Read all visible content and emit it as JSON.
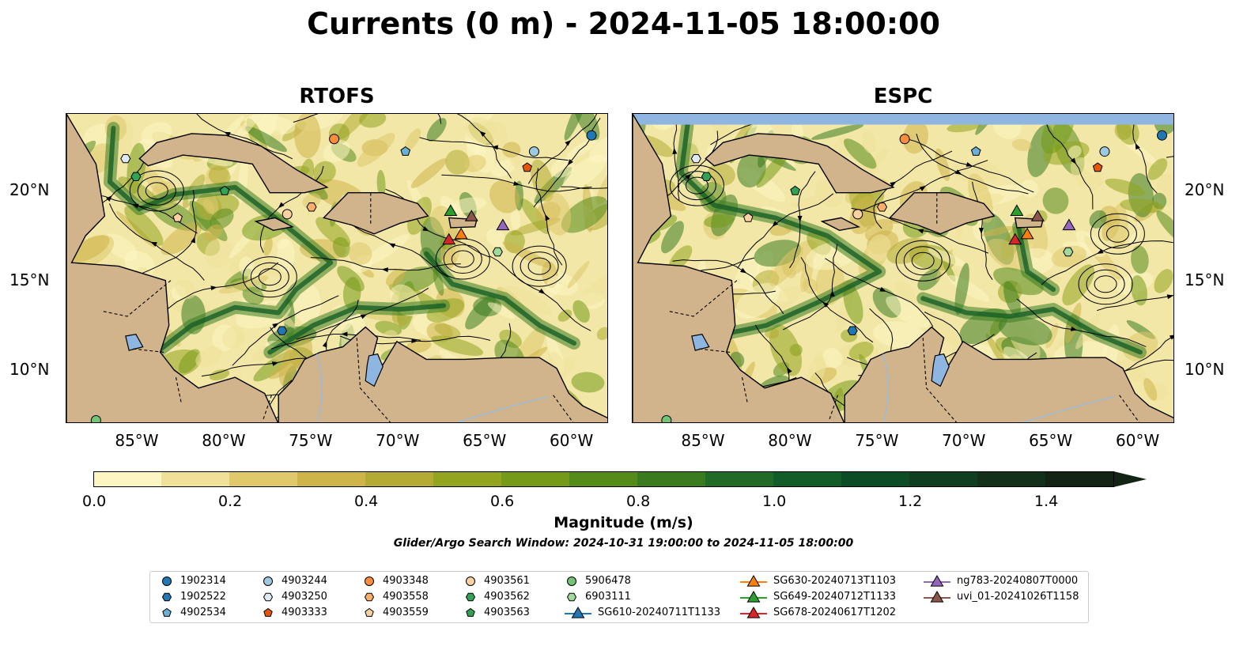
{
  "title": "Currents (0 m) - 2024-11-05 18:00:00",
  "panels": [
    {
      "title": "RTOFS"
    },
    {
      "title": "ESPC"
    }
  ],
  "lon_ticks": [
    "85°W",
    "80°W",
    "75°W",
    "70°W",
    "65°W",
    "60°W"
  ],
  "lat_ticks": [
    "20°N",
    "15°N",
    "10°N"
  ],
  "colorbar": {
    "label": "Magnitude (m/s)",
    "ticks": [
      "0.0",
      "0.2",
      "0.4",
      "0.6",
      "0.8",
      "1.0",
      "1.2",
      "1.4"
    ],
    "range": [
      0,
      1.5
    ],
    "extend": "max",
    "colors": [
      "#fdf6c3",
      "#efe19a",
      "#dfc96b",
      "#cdb54a",
      "#b3ab33",
      "#93a41f",
      "#749a18",
      "#558b1b",
      "#3a7b20",
      "#216b26",
      "#125c28",
      "#0d4d25",
      "#0f3e20",
      "#12301a",
      "#142414"
    ]
  },
  "search_window": "Glider/Argo Search Window: 2024-10-31 19:00:00 to 2024-11-05 18:00:00",
  "colors": {
    "land": "#d2b48c",
    "lake": "#8fb6e0",
    "ocean_low": "#fdf6c3",
    "ocean_high": "#1a5e22"
  },
  "legend": [
    {
      "label": "1902314",
      "marker": "circle",
      "color": "#1f77b4"
    },
    {
      "label": "1902522",
      "marker": "hexagon",
      "color": "#1f77b4"
    },
    {
      "label": "4902534",
      "marker": "pentagon",
      "color": "#6baed6"
    },
    {
      "label": "4903244",
      "marker": "circle",
      "color": "#9ecae1"
    },
    {
      "label": "4903250",
      "marker": "hexagon",
      "color": "#deebf7"
    },
    {
      "label": "4903333",
      "marker": "pentagon",
      "color": "#e6550d"
    },
    {
      "label": "4903348",
      "marker": "circle",
      "color": "#fd8d3c"
    },
    {
      "label": "4903558",
      "marker": "hexagon",
      "color": "#fdae6b"
    },
    {
      "label": "4903559",
      "marker": "pentagon",
      "color": "#fdd0a2"
    },
    {
      "label": "4903561",
      "marker": "circle",
      "color": "#fdd0a2"
    },
    {
      "label": "4903562",
      "marker": "hexagon",
      "color": "#31a354"
    },
    {
      "label": "4903563",
      "marker": "pentagon",
      "color": "#31a354"
    },
    {
      "label": "5906478",
      "marker": "circle",
      "color": "#74c476"
    },
    {
      "label": "6903111",
      "marker": "hexagon",
      "color": "#a1d99b"
    },
    {
      "label": "SG610-20240711T1133",
      "marker": "triangle",
      "color": "#1f77b4"
    },
    {
      "label": "SG630-20240713T1103",
      "marker": "triangle",
      "color": "#ff7f0e"
    },
    {
      "label": "SG649-20240712T1133",
      "marker": "triangle",
      "color": "#2ca02c"
    },
    {
      "label": "SG678-20240617T1202",
      "marker": "triangle",
      "color": "#d62728"
    },
    {
      "label": "ng783-20240807T0000",
      "marker": "triangle",
      "color": "#9467bd"
    },
    {
      "label": "uvi_01-20241026T1158",
      "marker": "triangle",
      "color": "#8c564b"
    }
  ],
  "platforms": [
    {
      "id": "1902314",
      "lon": -59.0,
      "lat": 23.1
    },
    {
      "id": "1902522",
      "lon": -76.8,
      "lat": 12.2
    },
    {
      "id": "4902534",
      "lon": -69.7,
      "lat": 22.2
    },
    {
      "id": "4903244",
      "lon": -62.3,
      "lat": 22.2
    },
    {
      "id": "4903250",
      "lon": -85.8,
      "lat": 21.8
    },
    {
      "id": "4903333",
      "lon": -62.7,
      "lat": 21.3
    },
    {
      "id": "4903348",
      "lon": -73.8,
      "lat": 22.9
    },
    {
      "id": "4903558",
      "lon": -75.1,
      "lat": 19.1
    },
    {
      "id": "4903559",
      "lon": -82.8,
      "lat": 18.5
    },
    {
      "id": "4903561",
      "lon": -76.5,
      "lat": 18.7
    },
    {
      "id": "4903562",
      "lon": -85.2,
      "lat": 20.8
    },
    {
      "id": "4903563",
      "lon": -80.1,
      "lat": 20.0
    },
    {
      "id": "5906478",
      "lon": -87.5,
      "lat": 7.2
    },
    {
      "id": "6903111",
      "lon": -64.4,
      "lat": 16.6
    },
    {
      "id": "SG630-20240713T1103",
      "lon": -66.5,
      "lat": 17.6
    },
    {
      "id": "SG649-20240712T1133",
      "lon": -67.1,
      "lat": 18.9
    },
    {
      "id": "SG678-20240617T1202",
      "lon": -67.2,
      "lat": 17.3
    },
    {
      "id": "ng783-20240807T0000",
      "lon": -64.1,
      "lat": 18.1
    },
    {
      "id": "uvi_01-20241026T1158",
      "lon": -65.9,
      "lat": 18.6
    }
  ]
}
